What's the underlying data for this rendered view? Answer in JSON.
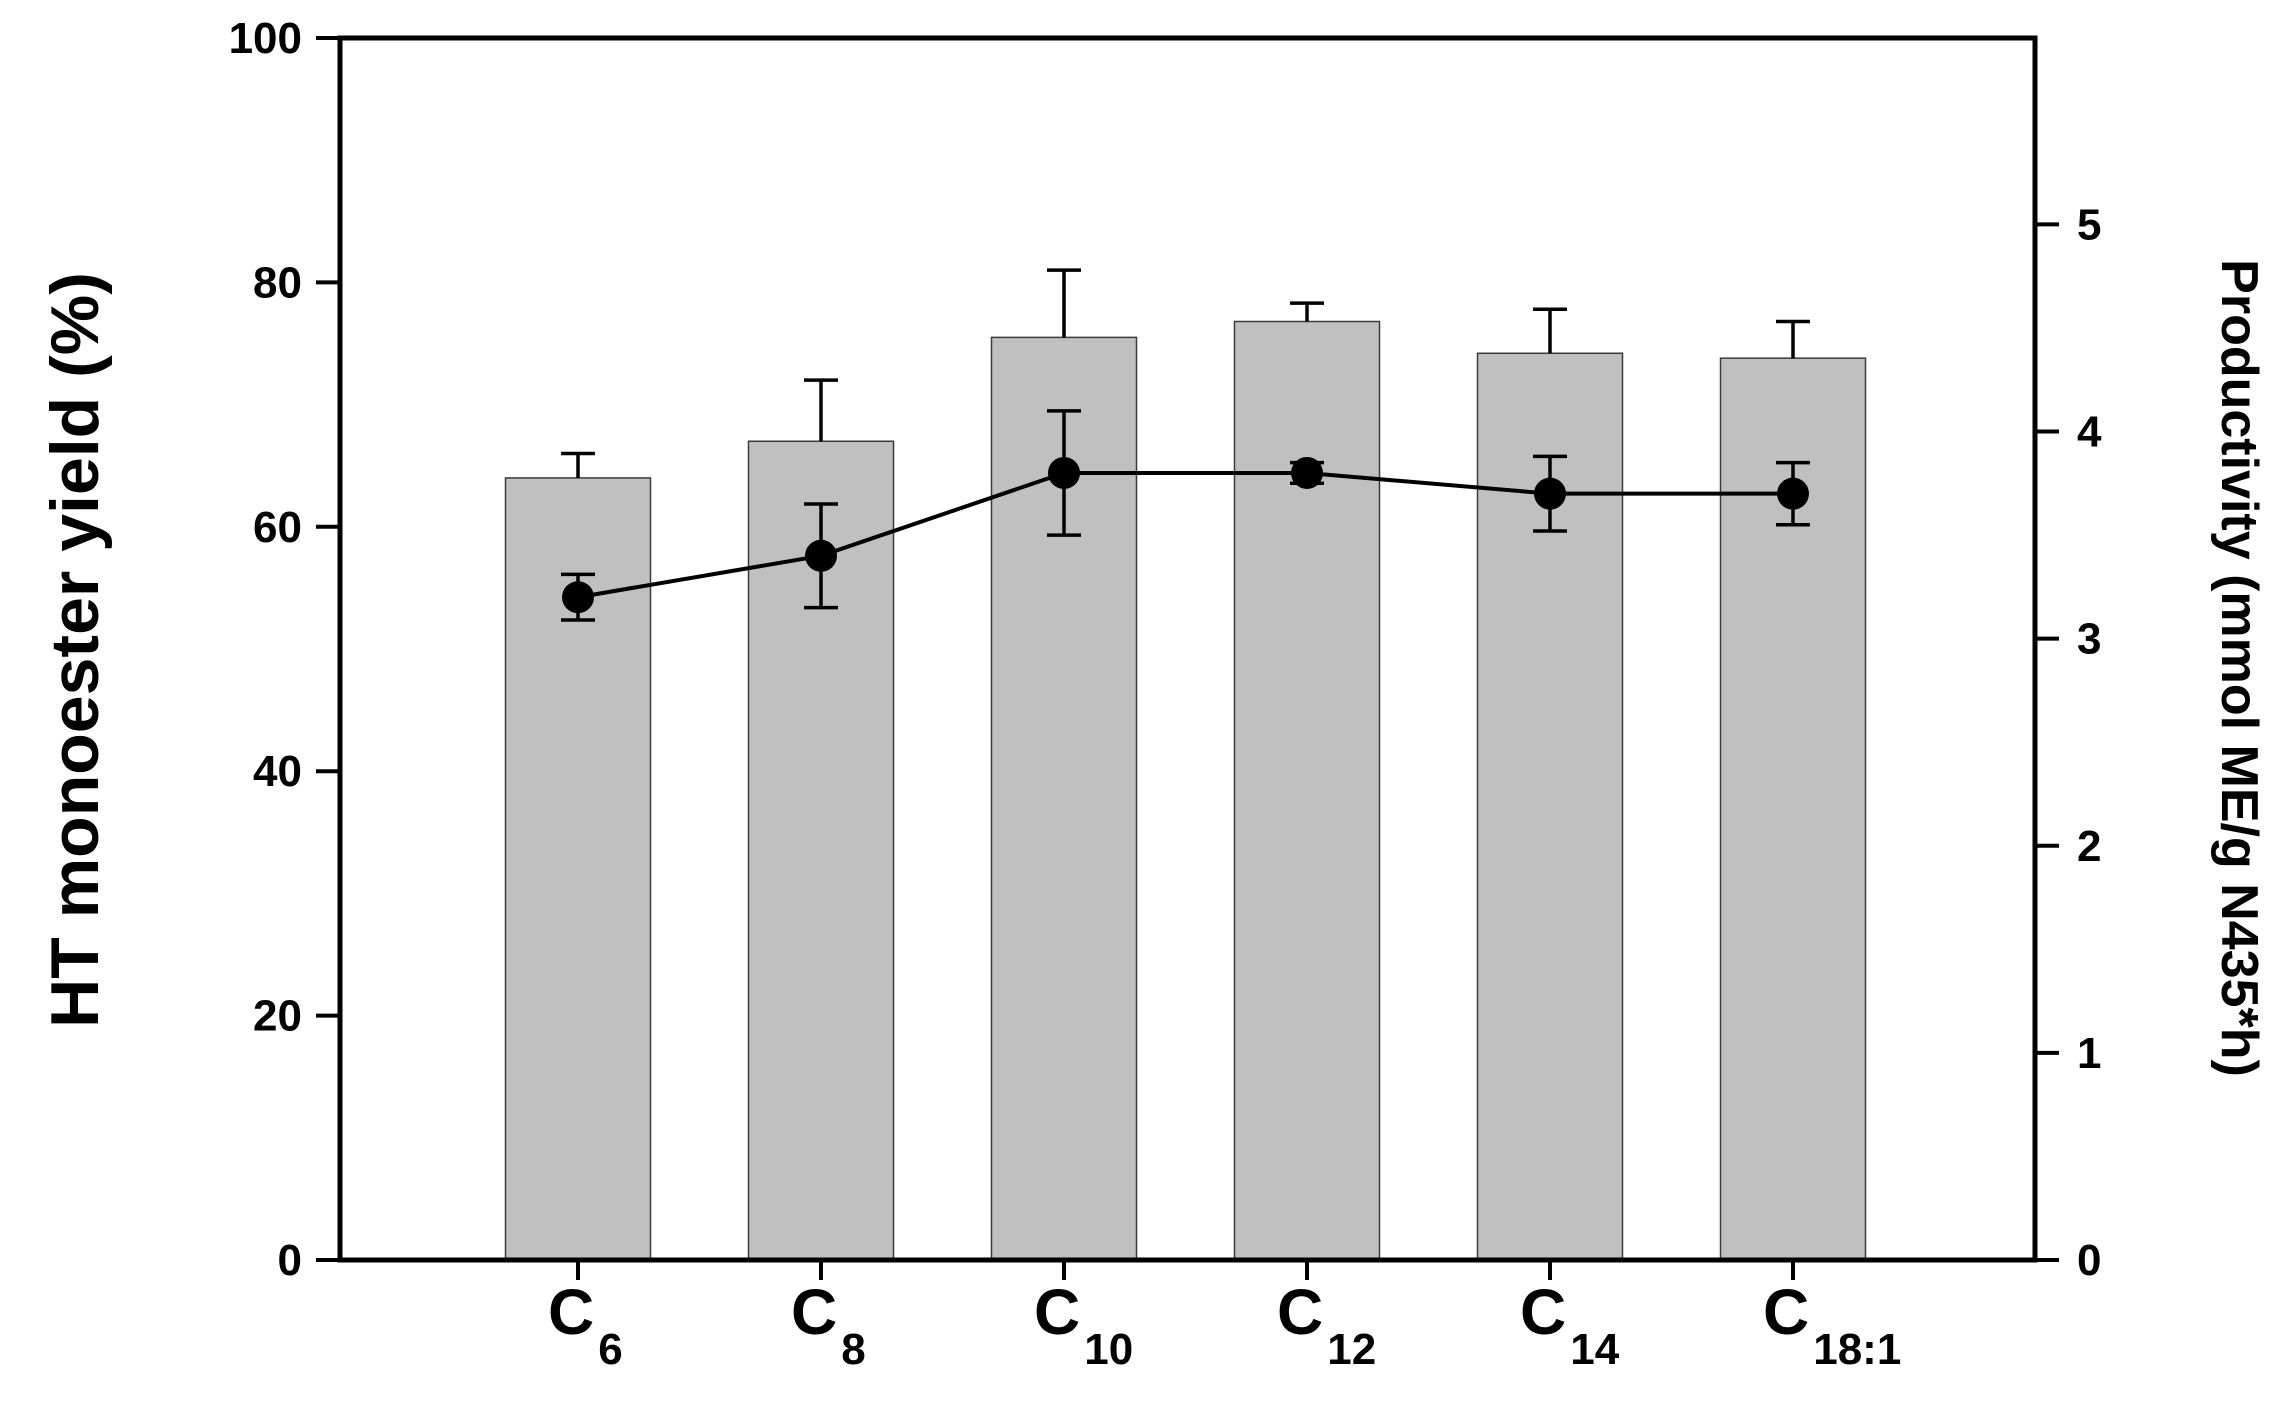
{
  "chart_data": {
    "type": "bar",
    "categories": [
      {
        "base": "C",
        "sub": "6"
      },
      {
        "base": "C",
        "sub": "8"
      },
      {
        "base": "C",
        "sub": "10"
      },
      {
        "base": "C",
        "sub": "12"
      },
      {
        "base": "C",
        "sub": "14"
      },
      {
        "base": "C",
        "sub": "18:1"
      }
    ],
    "series": [
      {
        "kind": "bar",
        "axis": "left",
        "values": [
          64.0,
          67.0,
          75.5,
          76.8,
          74.2,
          73.8
        ],
        "error": [
          2.0,
          5.0,
          5.5,
          1.5,
          3.6,
          3.0
        ],
        "color": "#c0c0c0"
      },
      {
        "kind": "line",
        "axis": "right",
        "values": [
          3.2,
          3.4,
          3.8,
          3.8,
          3.7,
          3.7
        ],
        "error": [
          0.11,
          0.25,
          0.3,
          0.05,
          0.18,
          0.15
        ],
        "color": "#000000"
      }
    ],
    "ylabel": "HT monoester yield (%)",
    "y2label": "Productivity (mmol ME/g N435*h)",
    "ylim": [
      0,
      100
    ],
    "yticks": [
      0,
      20,
      40,
      60,
      80,
      100
    ],
    "y2lim": [
      0,
      5.9
    ],
    "y2ticks": [
      0,
      1,
      2,
      3,
      4,
      5
    ],
    "grid": false
  }
}
